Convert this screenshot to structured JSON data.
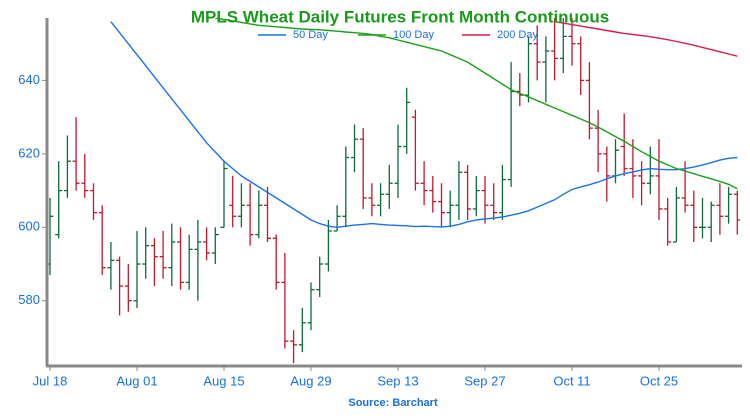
{
  "chart_data": {
    "type": "ohlc",
    "title": "MPLS Wheat Daily Futures Front Month Continuous",
    "source": "Source: Barchart",
    "categories": [
      "Jul 18",
      null,
      null,
      null,
      null,
      null,
      null,
      null,
      null,
      null,
      "Aug 01",
      null,
      null,
      null,
      null,
      null,
      null,
      null,
      null,
      null,
      "Aug 15",
      null,
      null,
      null,
      null,
      null,
      null,
      null,
      null,
      null,
      "Aug 29",
      null,
      null,
      null,
      null,
      null,
      null,
      null,
      null,
      null,
      "Sep 13",
      null,
      null,
      null,
      null,
      null,
      null,
      null,
      null,
      null,
      "Sep 27",
      null,
      null,
      null,
      null,
      null,
      null,
      null,
      null,
      null,
      "Oct 11",
      null,
      null,
      null,
      null,
      null,
      null,
      null,
      null,
      null,
      "Oct 25",
      null,
      null,
      null,
      null,
      null,
      null,
      null,
      null,
      null
    ],
    "open": [
      590,
      598,
      610,
      618,
      612,
      610,
      604,
      589,
      591,
      584,
      580,
      590,
      595,
      592,
      589,
      596,
      585,
      594,
      596,
      593,
      600,
      606,
      603,
      606,
      598,
      606,
      597,
      585,
      569,
      568,
      574,
      583,
      590,
      599,
      603,
      619,
      624,
      608,
      606,
      609,
      612,
      622,
      630,
      612,
      610,
      607,
      604,
      606,
      615,
      605,
      610,
      606,
      604,
      613,
      637,
      636,
      650,
      645,
      648,
      646,
      652,
      650,
      640,
      627,
      620,
      614,
      622,
      616,
      614,
      612,
      614,
      605,
      596,
      608,
      606,
      600,
      600,
      606,
      603,
      609
    ],
    "high": [
      608,
      618,
      625,
      630,
      620,
      612,
      606,
      596,
      592,
      590,
      599,
      600,
      597,
      599,
      601,
      600,
      598,
      602,
      600,
      600,
      618,
      614,
      612,
      612,
      610,
      611,
      598,
      593,
      572,
      578,
      585,
      592,
      602,
      606,
      622,
      628,
      627,
      612,
      612,
      617,
      628,
      638,
      632,
      618,
      614,
      612,
      610,
      618,
      617,
      614,
      614,
      612,
      617,
      645,
      642,
      652,
      655,
      652,
      657,
      657,
      657,
      652,
      645,
      632,
      622,
      624,
      631,
      624,
      618,
      622,
      624,
      608,
      611,
      618,
      610,
      608,
      607,
      612,
      611,
      610
    ],
    "low": [
      587,
      597,
      608,
      610,
      608,
      602,
      587,
      583,
      576,
      577,
      578,
      586,
      584,
      586,
      584,
      583,
      583,
      580,
      591,
      590,
      600,
      600,
      600,
      595,
      597,
      596,
      583,
      567,
      563,
      566,
      572,
      581,
      588,
      599,
      600,
      615,
      605,
      603,
      603,
      605,
      608,
      620,
      610,
      606,
      604,
      600,
      600,
      602,
      602,
      603,
      601,
      602,
      602,
      611,
      633,
      634,
      640,
      634,
      640,
      642,
      644,
      636,
      624,
      615,
      607,
      612,
      614,
      608,
      606,
      609,
      602,
      595,
      596,
      604,
      596,
      597,
      596,
      598,
      601,
      598
    ],
    "close": [
      603,
      610,
      618,
      612,
      610,
      604,
      589,
      591,
      584,
      580,
      590,
      595,
      592,
      589,
      596,
      585,
      594,
      596,
      593,
      598,
      616,
      603,
      606,
      598,
      606,
      597,
      585,
      569,
      568,
      574,
      583,
      590,
      599,
      603,
      619,
      624,
      608,
      606,
      609,
      612,
      622,
      634,
      612,
      610,
      607,
      604,
      606,
      615,
      605,
      610,
      606,
      604,
      613,
      637,
      636,
      650,
      645,
      648,
      646,
      652,
      650,
      640,
      627,
      620,
      614,
      621,
      616,
      614,
      612,
      614,
      605,
      596,
      608,
      606,
      600,
      600,
      606,
      603,
      609,
      602
    ],
    "up_color": "#0b6b3a",
    "down_color": "#c0182d",
    "series": [
      {
        "name": "50 Day",
        "color": "#1a73e8",
        "values": [
          null,
          null,
          null,
          null,
          null,
          null,
          null,
          656,
          653,
          650,
          647,
          644,
          641,
          638,
          635,
          632,
          629,
          626,
          623,
          620.5,
          618,
          616,
          614,
          612.5,
          611,
          609.5,
          608,
          606.5,
          605,
          603.5,
          602,
          601,
          600.3,
          600,
          600.3,
          600.6,
          600.8,
          601,
          600.8,
          600.6,
          600.5,
          600.4,
          600.2,
          600.3,
          600.2,
          600.1,
          600.3,
          600.8,
          601.5,
          602,
          602.3,
          602.5,
          602.8,
          603.3,
          603.8,
          604.5,
          605.5,
          606.5,
          607.5,
          609,
          610.3,
          611,
          611.6,
          612.3,
          613.2,
          614,
          614.6,
          615.1,
          615.6,
          616,
          615.8,
          615.7,
          615.7,
          616,
          616.4,
          617,
          617.6,
          618.3,
          618.8,
          619
        ]
      },
      {
        "name": "100 Day",
        "color": "#1aa01a",
        "values": [
          null,
          null,
          null,
          null,
          null,
          null,
          null,
          null,
          null,
          null,
          null,
          null,
          null,
          null,
          null,
          null,
          null,
          null,
          null,
          657,
          656.6,
          656.2,
          655.8,
          655.4,
          655,
          654.8,
          654.6,
          654.4,
          654.2,
          654,
          653.9,
          653.8,
          653.6,
          653.4,
          653.2,
          653,
          652.8,
          652.5,
          652,
          651.6,
          651,
          650.4,
          649.8,
          649.2,
          648.6,
          648,
          647,
          646,
          645,
          643.5,
          642,
          640.5,
          639,
          637.5,
          636.5,
          635.5,
          634.5,
          633.5,
          632.5,
          631.5,
          630.5,
          629.5,
          628.5,
          627.3,
          626,
          624.7,
          623.4,
          622,
          620.6,
          619.3,
          618,
          617,
          616,
          615.3,
          614.6,
          613.9,
          613.2,
          612.5,
          611.7,
          610.5
        ]
      },
      {
        "name": "200 Day",
        "color": "#d81e4a",
        "values": [
          null,
          null,
          null,
          null,
          null,
          null,
          null,
          null,
          null,
          null,
          null,
          null,
          null,
          null,
          null,
          null,
          null,
          null,
          null,
          null,
          null,
          null,
          null,
          null,
          null,
          null,
          null,
          null,
          null,
          null,
          null,
          null,
          null,
          null,
          null,
          null,
          null,
          null,
          null,
          null,
          null,
          null,
          null,
          null,
          null,
          null,
          null,
          null,
          null,
          null,
          null,
          null,
          null,
          null,
          null,
          null,
          null,
          null,
          656,
          655.6,
          655.2,
          654.8,
          654.4,
          654,
          653.6,
          653.2,
          652.8,
          652.5,
          652.2,
          651.9,
          651.5,
          651.1,
          650.6,
          650.1,
          649.6,
          649,
          648.4,
          647.8,
          647.2,
          646.6
        ]
      }
    ],
    "ylim": [
      562.5,
      657
    ],
    "yticks": [
      580,
      600,
      620,
      640
    ],
    "grid": false
  }
}
